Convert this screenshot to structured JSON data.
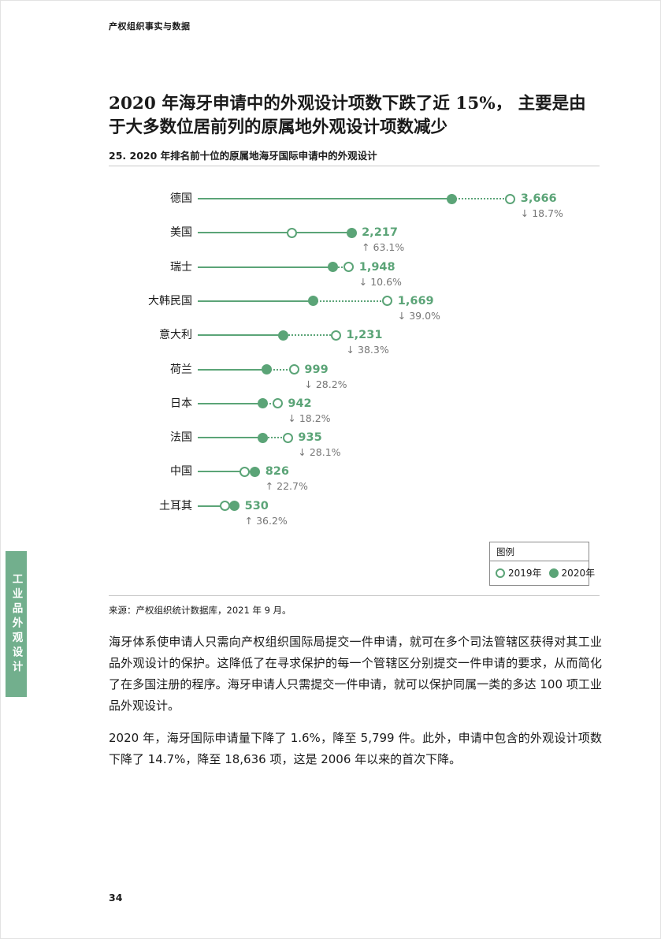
{
  "colors": {
    "accent_green": "#5ba477",
    "tab_green": "#72af8d",
    "change_gray": "#767676"
  },
  "page": {
    "header": "产权组织事实与数据",
    "sidebar_label": "工业品外观设计",
    "page_number": "34"
  },
  "figure": {
    "title": "2020 年海牙申请中的外观设计项数下跌了近 15%， 主要是由于大多数位居前列的原属地外观设计项数减少",
    "subtitle": "25. 2020 年排名前十位的原属地海牙国际申请中的外观设计",
    "source": "来源：产权组织统计数据库，2021 年 9 月。"
  },
  "legend": {
    "title": "图例",
    "items": [
      {
        "label": "2019年",
        "marker": "open"
      },
      {
        "label": "2020年",
        "marker": "filled"
      }
    ]
  },
  "chart_data": {
    "type": "dumbbell",
    "title": "25. 2020 年排名前十位的原属地海牙国际申请中的外观设计",
    "categories": [
      "德国",
      "美国",
      "瑞士",
      "大韩民国",
      "意大利",
      "荷兰",
      "日本",
      "法国",
      "中国",
      "土耳其"
    ],
    "series": [
      {
        "name": "2019年",
        "marker": "open",
        "values": [
          4509,
          1359,
          2179,
          2736,
          1995,
          1391,
          1152,
          1300,
          673,
          389
        ]
      },
      {
        "name": "2020年",
        "marker": "filled",
        "values": [
          3666,
          2217,
          1948,
          1669,
          1231,
          999,
          942,
          935,
          826,
          530
        ]
      }
    ],
    "value_labels": [
      "3,666",
      "2,217",
      "1,948",
      "1,669",
      "1,231",
      "999",
      "942",
      "935",
      "826",
      "530"
    ],
    "change_labels": [
      "↓ 18.7%",
      "↑ 63.1%",
      "↓ 10.6%",
      "↓ 39.0%",
      "↓ 38.3%",
      "↓ 28.2%",
      "↓ 18.2%",
      "↓ 28.1%",
      "↑ 22.7%",
      "↑ 36.2%"
    ],
    "xlim": [
      0,
      4600
    ],
    "grid": false,
    "legend_position": "bottom-right",
    "note": "2019 series values estimated from marker positions and percent change"
  },
  "body": {
    "paragraphs": [
      "海牙体系使申请人只需向产权组织国际局提交一件申请，就可在多个司法管辖区获得对其工业品外观设计的保护。这降低了在寻求保护的每一个管辖区分别提交一件申请的要求，从而简化了在多国注册的程序。海牙申请人只需提交一件申请，就可以保护同属一类的多达 100 项工业品外观设计。",
      "2020 年，海牙国际申请量下降了 1.6%，降至 5,799 件。此外，申请中包含的外观设计项数下降了 14.7%，降至 18,636 项，这是 2006 年以来的首次下降。"
    ]
  }
}
